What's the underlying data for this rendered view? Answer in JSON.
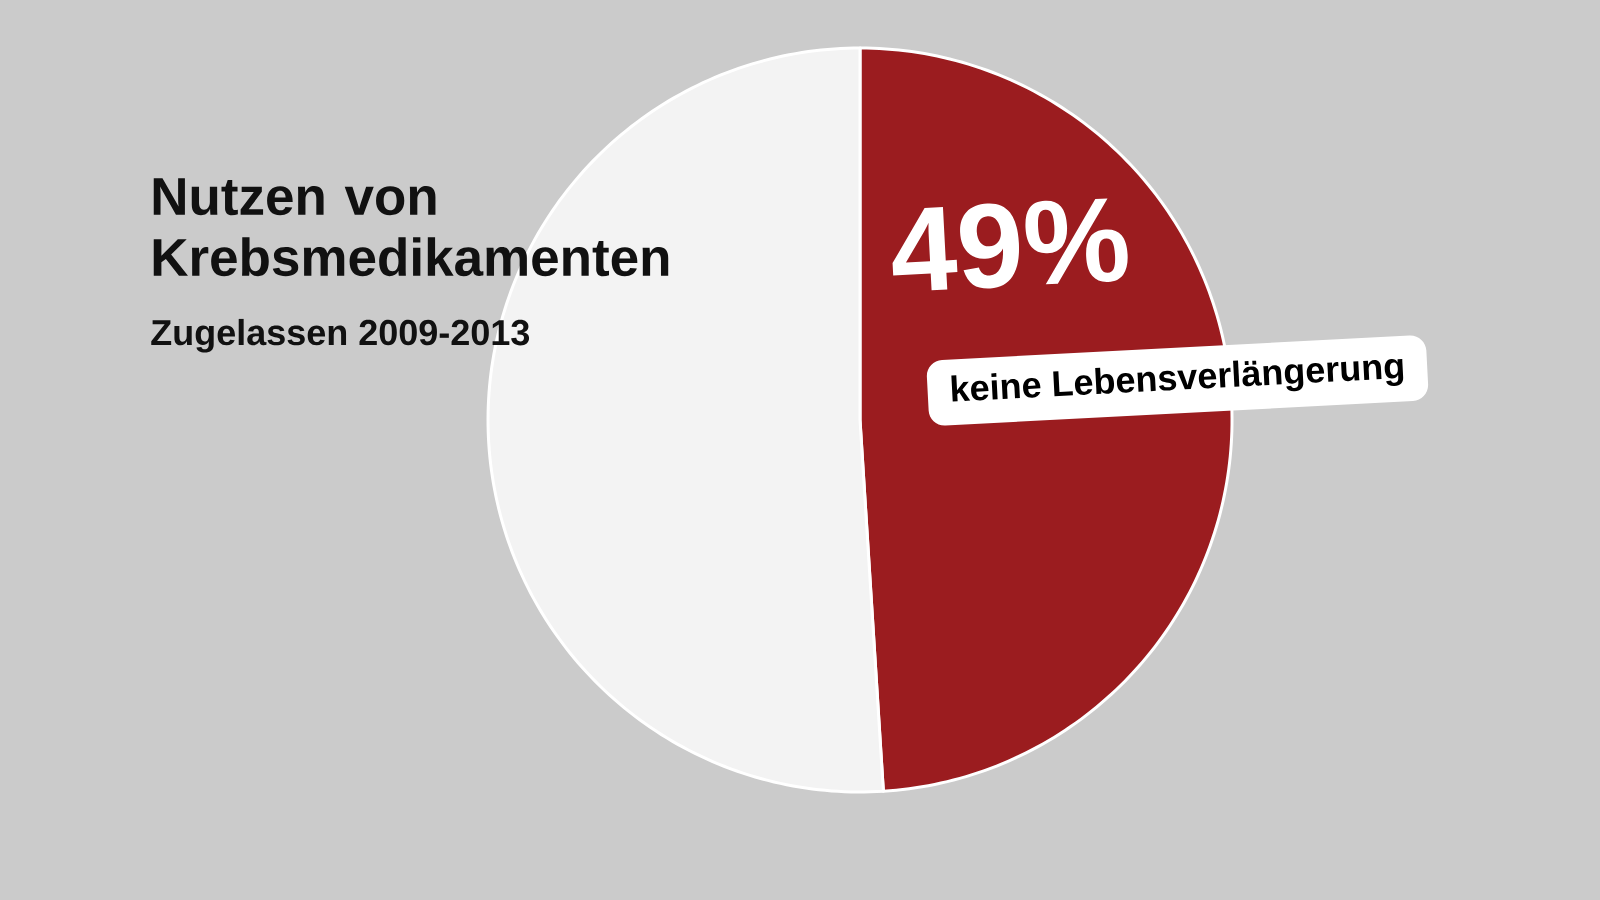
{
  "chart_data": {
    "type": "pie",
    "title": "Nutzen von Krebsmedikamenten",
    "subtitle": "Zugelassen 2009-2013",
    "categories": [
      "keine Lebensverlängerung",
      null
    ],
    "values": [
      49,
      51
    ],
    "colors": [
      "#9b1c1f",
      "#f3f3f3"
    ],
    "value_labels": [
      "49%",
      null
    ]
  }
}
